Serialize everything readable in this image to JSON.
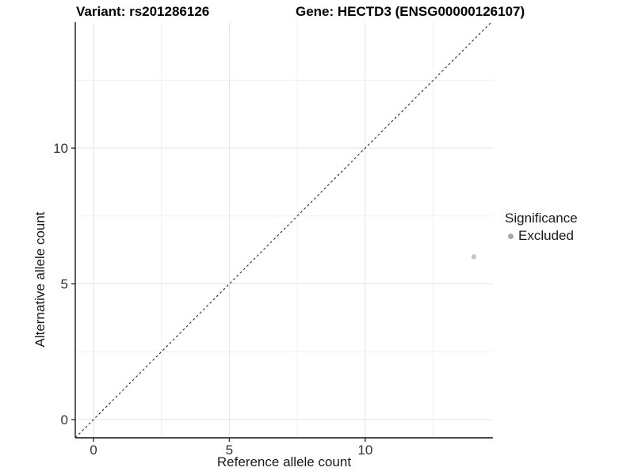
{
  "titles": {
    "variant": "Variant: rs201286126",
    "gene": "Gene: HECTD3 (ENSG00000126107)"
  },
  "axes": {
    "x": {
      "label": "Reference allele count",
      "breaks": [
        0,
        5,
        10
      ],
      "minor_breaks": [
        2.5,
        7.5,
        12.5
      ],
      "range": [
        -0.67,
        14.7
      ]
    },
    "y": {
      "label": "Alternative allele count",
      "breaks": [
        0,
        5,
        10
      ],
      "minor_breaks": [
        2.5,
        7.5,
        12.5
      ],
      "range": [
        -0.67,
        14.64
      ]
    }
  },
  "legend": {
    "title": "Significance",
    "items": [
      {
        "label": "Excluded",
        "color": "#a8a8a8"
      }
    ]
  },
  "chart_data": {
    "type": "scatter",
    "title": "Variant: rs201286126 / Gene: HECTD3 (ENSG00000126107)",
    "xlabel": "Reference allele count",
    "ylabel": "Alternative allele count",
    "xlim": [
      -0.67,
      14.7
    ],
    "ylim": [
      -0.67,
      14.64
    ],
    "x_ticks": [
      0,
      5,
      10
    ],
    "y_ticks": [
      0,
      5,
      10
    ],
    "grid": true,
    "legend_position": "right",
    "series": [
      {
        "name": "Excluded",
        "color": "#c6c6c6",
        "points": [
          {
            "x": 14,
            "y": 6
          }
        ]
      }
    ],
    "identity_line": {
      "equation": "y = x",
      "style": "dashed",
      "color": "#2b2b2b"
    }
  },
  "colors": {
    "point": "#c6c6c6",
    "legend_key": "#a8a8a8",
    "grid_major": "#e3e3e3",
    "grid_minor": "#f0f0f0",
    "axis_line": "#333333",
    "tick_text": "#333333",
    "identity_line": "#2b2b2b"
  }
}
